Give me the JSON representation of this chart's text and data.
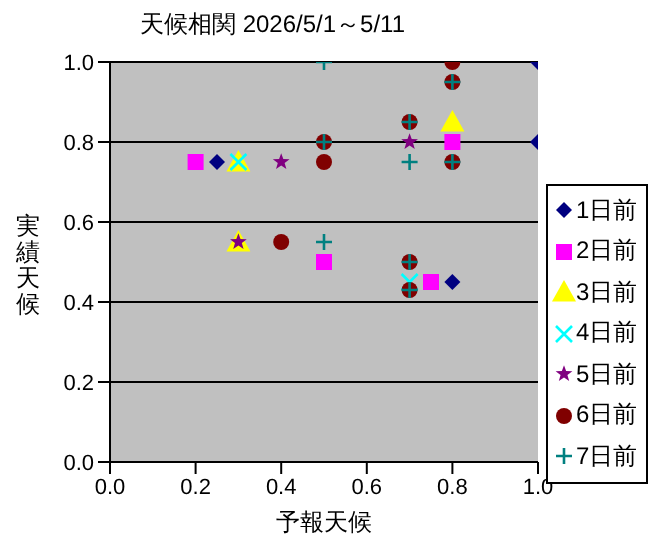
{
  "chart_data": {
    "type": "scatter",
    "title": "天候相関 2026/5/1～5/11",
    "xlabel": "予報天候",
    "ylabel": "実績天候",
    "xlim": [
      0,
      1
    ],
    "ylim": [
      0,
      1
    ],
    "xticks": [
      {
        "value": 0,
        "label": "0.0"
      },
      {
        "value": 0.2,
        "label": "0.2"
      },
      {
        "value": 0.4,
        "label": "0.4"
      },
      {
        "value": 0.6,
        "label": "0.6"
      },
      {
        "value": 0.8,
        "label": "0.8"
      },
      {
        "value": 1,
        "label": "1.0"
      }
    ],
    "yticks": [
      {
        "value": 0,
        "label": "0.0"
      },
      {
        "value": 0.2,
        "label": "0.2"
      },
      {
        "value": 0.4,
        "label": "0.4"
      },
      {
        "value": 0.6,
        "label": "0.6"
      },
      {
        "value": 0.8,
        "label": "0.8"
      },
      {
        "value": 1,
        "label": "1.0"
      }
    ],
    "grid": "y",
    "legend": "right",
    "series": [
      {
        "name": "1日前",
        "color": "#000080",
        "marker": "diamond",
        "x": [
          0.25,
          1.0,
          1.0,
          0.8
        ],
        "values": [
          0.75,
          1.0,
          0.8,
          0.45
        ]
      },
      {
        "name": "2日前",
        "color": "#ff00ff",
        "marker": "square",
        "x": [
          0.2,
          0.5,
          0.75,
          0.8
        ],
        "values": [
          0.75,
          0.5,
          0.45,
          0.8
        ]
      },
      {
        "name": "3日前",
        "color": "#ffff00",
        "marker": "triangle",
        "x": [
          0.3,
          0.8,
          0.3
        ],
        "values": [
          0.75,
          0.85,
          0.55
        ]
      },
      {
        "name": "4日前",
        "color": "#00ffff",
        "marker": "cross",
        "x": [
          0.3,
          0.7
        ],
        "values": [
          0.75,
          0.45
        ]
      },
      {
        "name": "5日前",
        "color": "#800080",
        "marker": "star",
        "x": [
          0.4,
          0.3,
          0.7
        ],
        "values": [
          0.75,
          0.55,
          0.8
        ]
      },
      {
        "name": "6日前",
        "color": "#800000",
        "marker": "circle",
        "x": [
          0.4,
          0.5,
          0.8,
          0.5,
          0.7,
          0.8,
          0.8,
          0.7,
          0.7
        ],
        "values": [
          0.55,
          0.75,
          1.0,
          0.8,
          0.85,
          0.95,
          0.75,
          0.5,
          0.43
        ]
      },
      {
        "name": "7日前",
        "color": "#008080",
        "marker": "plus",
        "x": [
          0.5,
          0.5,
          0.7,
          0.8,
          0.5,
          0.7,
          0.8,
          0.7,
          0.7
        ],
        "values": [
          1.0,
          0.55,
          0.75,
          0.95,
          0.8,
          0.85,
          0.75,
          0.5,
          0.43
        ]
      }
    ]
  }
}
